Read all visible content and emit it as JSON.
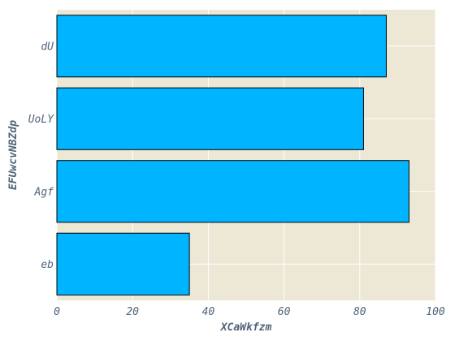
{
  "chart_data": {
    "type": "bar",
    "orientation": "horizontal",
    "categories": [
      "eb",
      "Agf",
      "UoLY",
      "dU"
    ],
    "values": [
      35,
      93,
      81,
      87
    ],
    "xlabel": "XCaWkfzm",
    "ylabel": "EFUwcvNBZdp",
    "xlim": [
      0,
      100
    ],
    "xticks": [
      0,
      20,
      40,
      60,
      80,
      100
    ],
    "grid": true,
    "colors": {
      "bar": "#00b4ff",
      "bar_edge": "#000000",
      "plot_background": "#ede7d6",
      "grid": "#ffffff",
      "text": "#50657a"
    }
  }
}
